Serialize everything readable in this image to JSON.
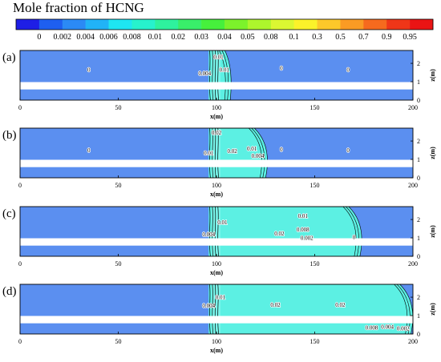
{
  "title": "Mole fraction of HCNG",
  "colorbar": {
    "levels": [
      "0",
      "0.002",
      "0.004",
      "0.006",
      "0.008",
      "0.01",
      "0.02",
      "0.03",
      "0.04",
      "0.05",
      "0.08",
      "0.1",
      "0.3",
      "0.5",
      "0.7",
      "0.9",
      "0.95"
    ],
    "colors": [
      "#1e1ee6",
      "#1e5ff0",
      "#2b8af5",
      "#21b3f7",
      "#1ee6f2",
      "#27f2cd",
      "#2ef29e",
      "#39ee6a",
      "#46f03c",
      "#7cf22b",
      "#adf52c",
      "#dbf732",
      "#fbf22a",
      "#fcc82a",
      "#fa9b24",
      "#f66a1e",
      "#ef3618",
      "#ea1414"
    ]
  },
  "panel_colors": {
    "zero_region": "#5b8ff0",
    "plume_region": "#5cf0e3",
    "plume_light": "#7af7ec"
  },
  "axes": {
    "x": {
      "label": "x(m)",
      "ticks": [
        0,
        50,
        100,
        150,
        200
      ],
      "range": [
        0,
        200
      ]
    },
    "z": {
      "label": "z(m)",
      "ticks": [
        0,
        1,
        2
      ],
      "range": [
        0,
        2.7
      ]
    },
    "road_band_z": [
      0.58,
      0.98
    ]
  },
  "panels": [
    {
      "id": "(a)",
      "plume_end_x": 107,
      "contour_labels": [
        {
          "text": "0",
          "x": 35,
          "z": 1.65
        },
        {
          "text": "0",
          "x": 133,
          "z": 1.75
        },
        {
          "text": "0",
          "x": 167,
          "z": 1.65
        },
        {
          "text": "0.004",
          "x": 94,
          "z": 1.45
        },
        {
          "text": "0.01",
          "x": 101,
          "z": 2.35
        },
        {
          "text": "0.01",
          "x": 104,
          "z": 1.65
        }
      ]
    },
    {
      "id": "(b)",
      "plume_end_x": 125,
      "contour_labels": [
        {
          "text": "0",
          "x": 35,
          "z": 1.5
        },
        {
          "text": "0",
          "x": 133,
          "z": 1.55
        },
        {
          "text": "0",
          "x": 167,
          "z": 1.5
        },
        {
          "text": "0.02",
          "x": 100,
          "z": 2.45
        },
        {
          "text": "0.01",
          "x": 96,
          "z": 1.35
        },
        {
          "text": "0.02",
          "x": 108,
          "z": 1.45
        },
        {
          "text": "0.01",
          "x": 118,
          "z": 1.6
        },
        {
          "text": "0.004",
          "x": 121,
          "z": 1.2
        }
      ]
    },
    {
      "id": "(c)",
      "plume_end_x": 173,
      "contour_labels": [
        {
          "text": "0.01",
          "x": 103,
          "z": 1.85
        },
        {
          "text": "0.004",
          "x": 96,
          "z": 1.2
        },
        {
          "text": "0.02",
          "x": 132,
          "z": 1.25
        },
        {
          "text": "0.01",
          "x": 144,
          "z": 2.2
        },
        {
          "text": "0.008",
          "x": 144,
          "z": 1.45
        },
        {
          "text": "0.002",
          "x": 146,
          "z": 1.0
        },
        {
          "text": "0",
          "x": 170,
          "z": 1.05
        }
      ]
    },
    {
      "id": "(d)",
      "plume_end_x": 199,
      "contour_labels": [
        {
          "text": "0.01",
          "x": 102,
          "z": 2.0
        },
        {
          "text": "0.004",
          "x": 96,
          "z": 1.55
        },
        {
          "text": "0.02",
          "x": 130,
          "z": 1.6
        },
        {
          "text": "0.02",
          "x": 163,
          "z": 1.6
        },
        {
          "text": "0.008",
          "x": 179,
          "z": 0.35
        },
        {
          "text": "0.004",
          "x": 187,
          "z": 0.4
        },
        {
          "text": "0.002",
          "x": 195,
          "z": 0.3
        }
      ]
    }
  ]
}
